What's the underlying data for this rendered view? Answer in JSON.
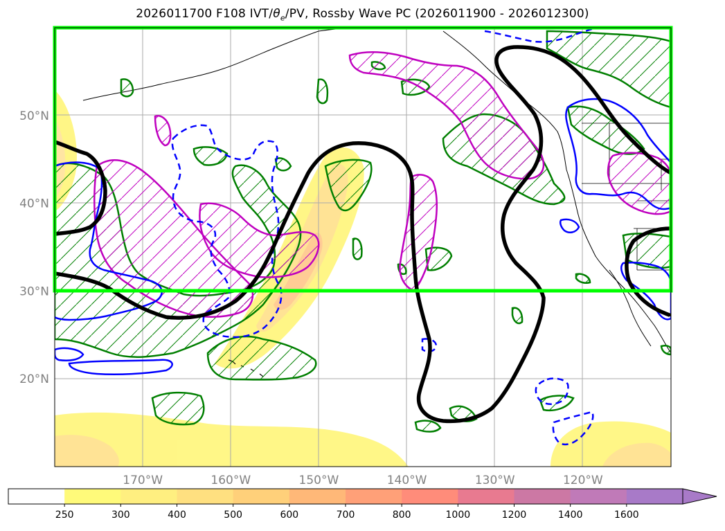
{
  "title_prefix": "2026011700 F108 IVT/",
  "title_theta": "θ",
  "title_sub": "e",
  "title_suffix": "/PV, Rossby Wave PC (2026011900 - 2026012300)",
  "map": {
    "lon_range": [
      -180,
      -110
    ],
    "lat_range": [
      10,
      60
    ],
    "lat_ticks": [
      {
        "value": 20,
        "label": "20°N"
      },
      {
        "value": 30,
        "label": "30°N"
      },
      {
        "value": 40,
        "label": "40°N"
      },
      {
        "value": 50,
        "label": "50°N"
      }
    ],
    "lon_ticks": [
      {
        "value": -170,
        "label": "170°W"
      },
      {
        "value": -160,
        "label": "160°W"
      },
      {
        "value": -150,
        "label": "150°W"
      },
      {
        "value": -140,
        "label": "140°W"
      },
      {
        "value": -130,
        "label": "130°W"
      },
      {
        "value": -120,
        "label": "120°W"
      }
    ],
    "highlight_box": {
      "lon_min": -180,
      "lon_max": -110,
      "lat_min": 30,
      "lat_max": 60,
      "color": "#00ff00"
    }
  },
  "colorbar": {
    "levels": [
      "250",
      "300",
      "400",
      "500",
      "600",
      "700",
      "800",
      "1000",
      "1200",
      "1400",
      "1600"
    ],
    "colors": [
      "#ffffff",
      "#fffa7a",
      "#ffef80",
      "#ffe080",
      "#ffd07a",
      "#ffb878",
      "#ffa078",
      "#ff8c7a",
      "#e87a90",
      "#cc78a4",
      "#c07ab8",
      "#a87ac8"
    ]
  },
  "colors": {
    "contour_black": "#000000",
    "pv_green": "#007f00",
    "theta_magenta": "#bf00bf",
    "rossby_blue": "#0000ff",
    "ivt_yellow": "#fff67a",
    "ivt_orange": "#ffc070"
  }
}
